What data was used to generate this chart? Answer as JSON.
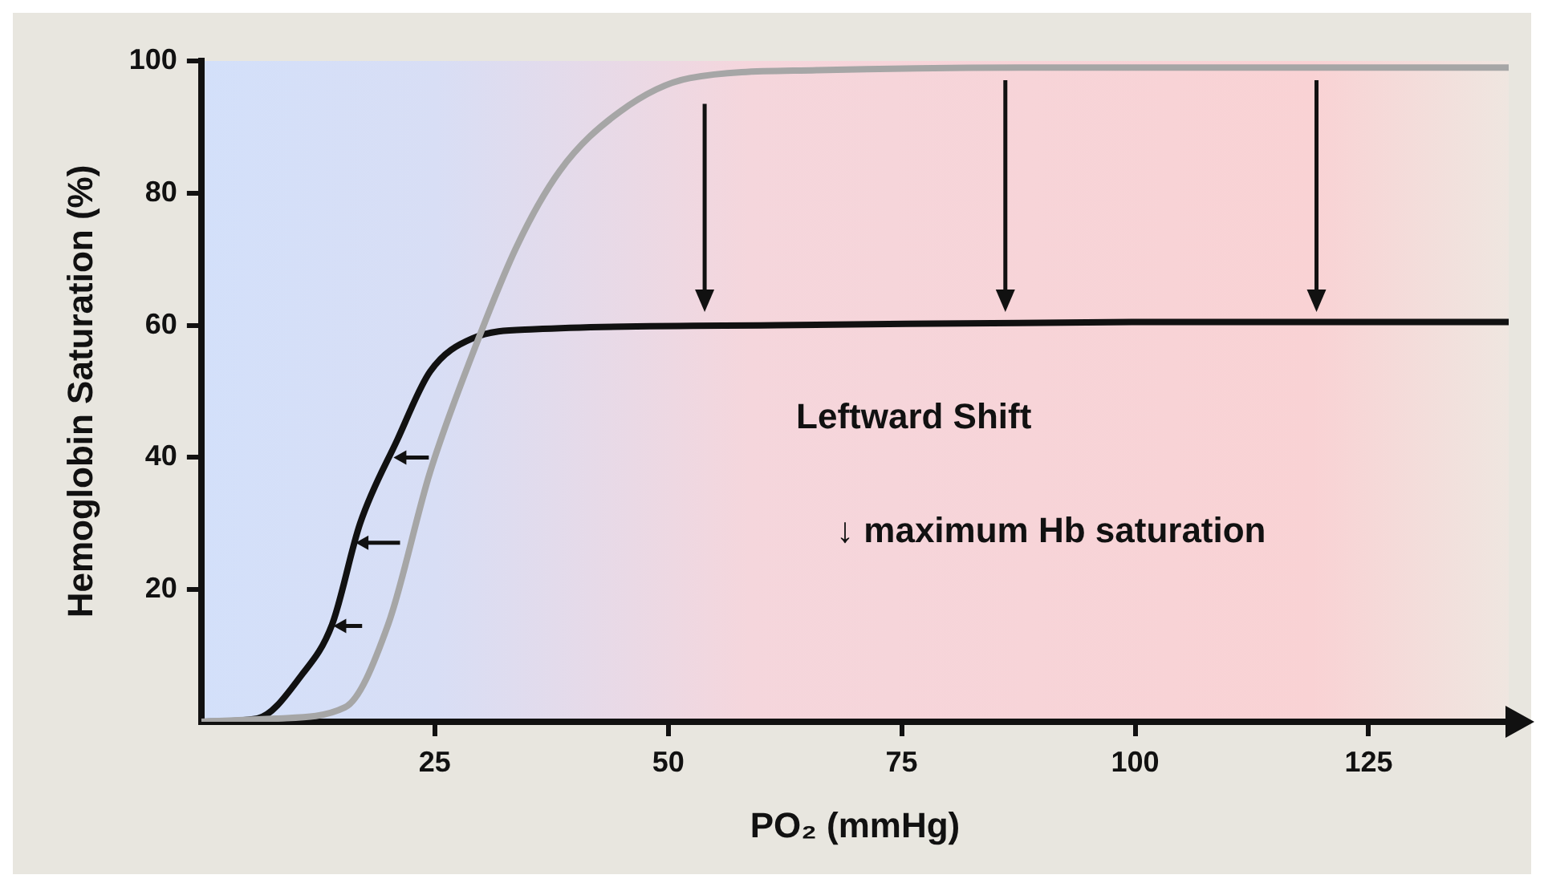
{
  "chart_data": {
    "type": "line",
    "xlabel": "PO₂ (mmHg)",
    "ylabel": "Hemoglobin Saturation (%)",
    "xlim": [
      0,
      140
    ],
    "xticks": [
      25,
      50,
      75,
      100,
      125
    ],
    "ylim": [
      0,
      100
    ],
    "yticks": [
      20,
      40,
      60,
      80,
      100
    ],
    "marker": "none",
    "line_style": "solid",
    "series": [
      {
        "color": "#a6a6a6",
        "x": [
          0,
          8,
          15.4,
          20,
          24.5,
          29,
          33.8,
          38.4,
          44.8,
          52.3,
          66,
          90,
          115,
          140
        ],
        "values": [
          0,
          0.5,
          2.2,
          14.7,
          37.8,
          55.5,
          72,
          83.4,
          92.3,
          97.4,
          98.6,
          99,
          99,
          99
        ]
      },
      {
        "color": "#111111",
        "x": [
          0,
          6,
          10.7,
          14,
          17,
          21,
          24.5,
          29,
          35.7,
          61.6,
          100,
          140
        ],
        "values": [
          0,
          0.5,
          7,
          14.7,
          30,
          42.7,
          53,
          58,
          59.4,
          60,
          60.5,
          60.5
        ]
      }
    ],
    "annotations": [
      "Leftward Shift",
      "↓ maximum Hb saturation"
    ]
  }
}
